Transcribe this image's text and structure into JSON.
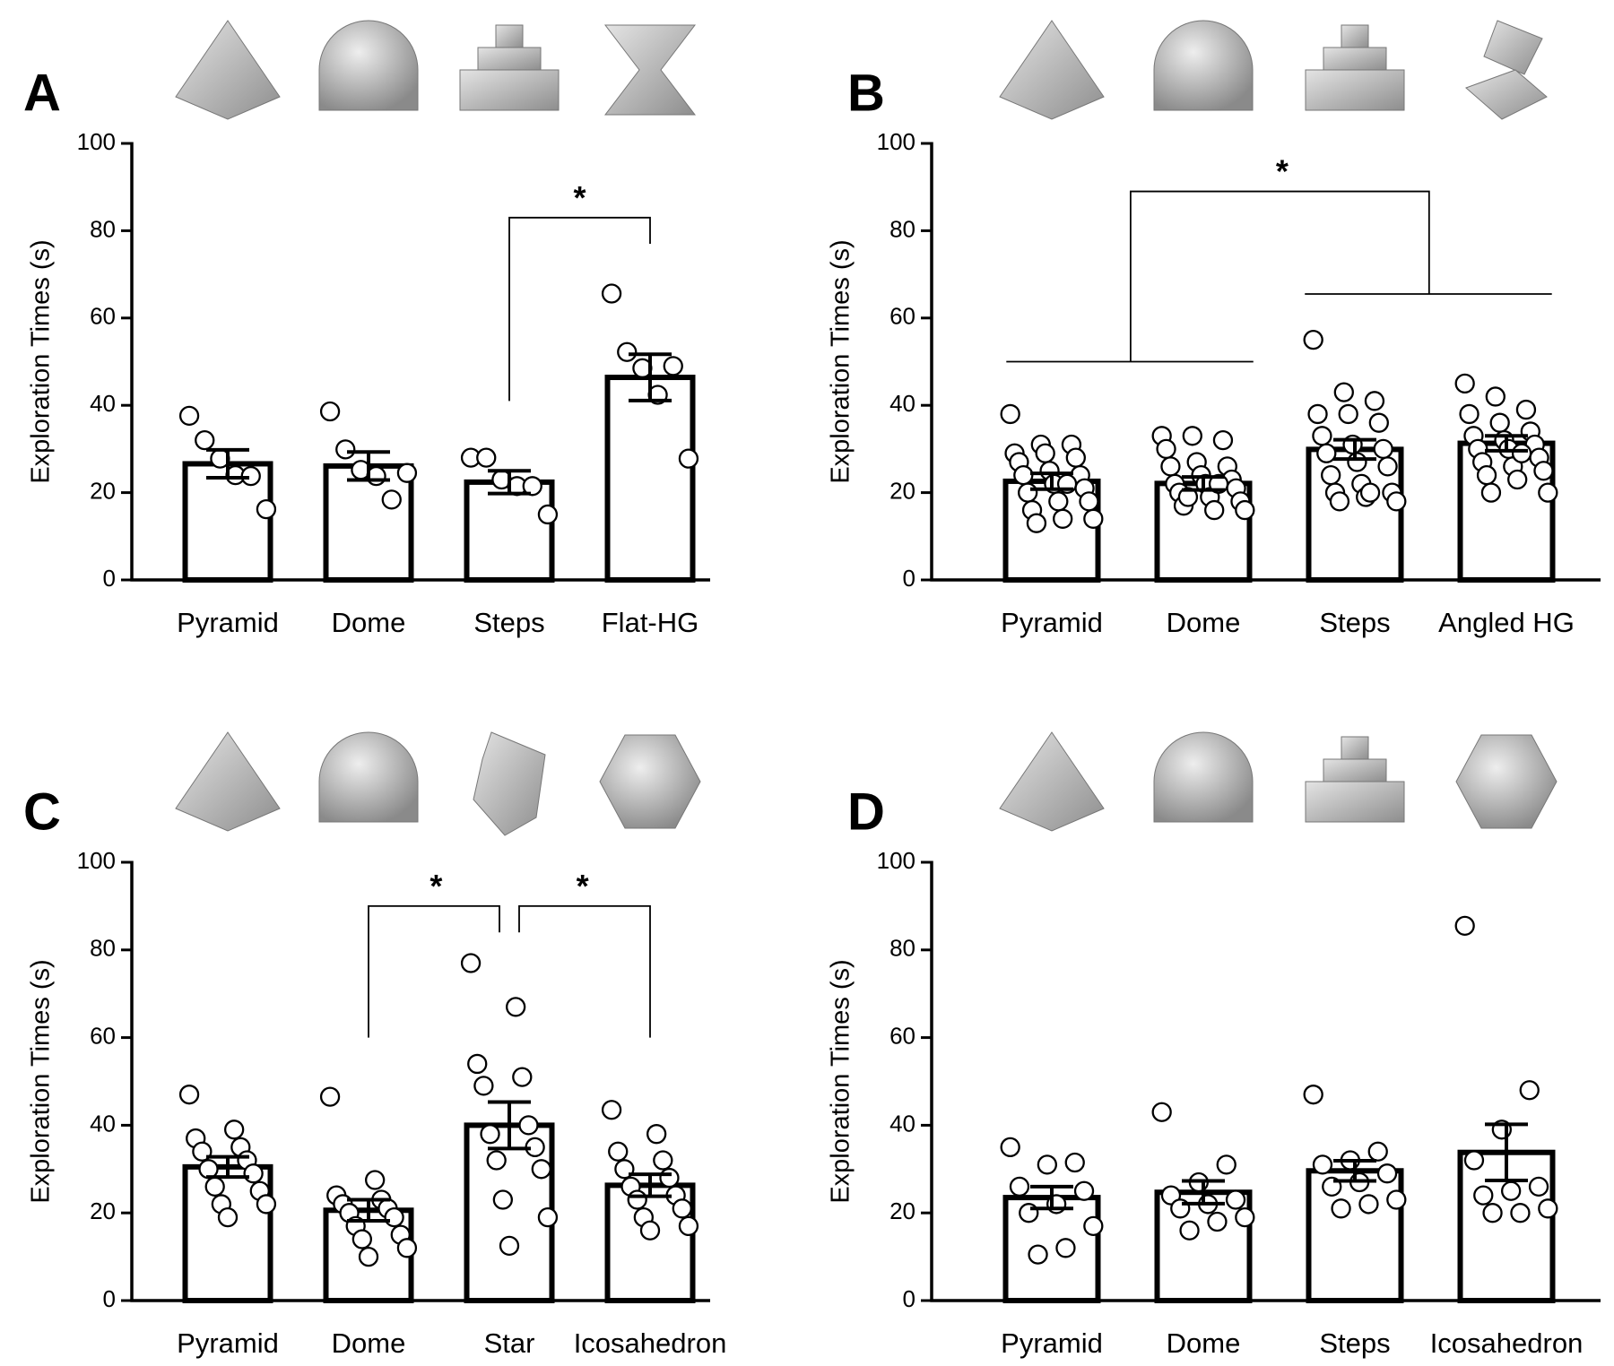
{
  "chart_data": [
    {
      "type": "bar",
      "panel_label": "A",
      "y_label": "Exploration Times (s)",
      "categories": [
        "Pyramid",
        "Dome",
        "Steps",
        "Flat-HG"
      ],
      "values": [
        26.6,
        26.1,
        22.4,
        46.4
      ],
      "errors": [
        3.2,
        3.2,
        2.6,
        5.3
      ],
      "points": [
        [
          37.6,
          32,
          27.8,
          24,
          23.8,
          16.2
        ],
        [
          38.6,
          29.9,
          25.2,
          23.8,
          18.4,
          24.5
        ],
        [
          28,
          28,
          23,
          21.5,
          21.5,
          15
        ],
        [
          65.6,
          52.2,
          48.5,
          42.4,
          49,
          27.8
        ]
      ],
      "annotations": [
        "*"
      ],
      "color": "#000000",
      "ylim": [
        0,
        100
      ],
      "yticks": [
        0,
        20,
        40,
        60,
        80,
        100
      ]
    },
    {
      "type": "bar",
      "panel_label": "B",
      "y_label": "Exploration Times (s)",
      "categories": [
        "Pyramid",
        "Dome",
        "Steps",
        "Angled HG"
      ],
      "values": [
        22.6,
        22.1,
        29.9,
        31.3
      ],
      "errors": [
        1.8,
        1.5,
        2.2,
        1.7
      ],
      "points": [
        [
          38,
          31,
          31,
          29,
          29,
          28,
          27,
          25,
          24,
          24,
          22,
          21,
          20,
          18,
          18,
          16,
          14,
          14,
          13,
          22
        ],
        [
          33,
          33,
          32,
          30,
          27,
          26,
          26,
          24,
          23,
          22,
          22,
          21,
          20,
          19,
          18,
          17,
          16,
          16,
          19,
          22
        ],
        [
          55,
          43,
          41,
          38,
          38,
          36,
          33,
          31,
          30,
          29,
          27,
          26,
          24,
          22,
          20,
          20,
          19,
          18,
          18,
          20
        ],
        [
          45,
          42,
          39,
          38,
          36,
          34,
          33,
          32,
          31,
          30,
          30,
          28,
          27,
          26,
          25,
          24,
          23,
          20,
          20,
          29
        ]
      ],
      "annotations": [
        "*"
      ],
      "color": "#000000",
      "ylim": [
        0,
        100
      ],
      "yticks": [
        0,
        20,
        40,
        60,
        80,
        100
      ]
    },
    {
      "type": "bar",
      "panel_label": "C",
      "y_label": "Exploration Times (s)",
      "categories": [
        "Pyramid",
        "Dome",
        "Star",
        "Icosahedron"
      ],
      "values": [
        30.5,
        20.6,
        40,
        26.3
      ],
      "errors": [
        2.3,
        2.4,
        5.3,
        2.5
      ],
      "points": [
        [
          47,
          39,
          37,
          35,
          34,
          32,
          30,
          29,
          26,
          25,
          22,
          22,
          19
        ],
        [
          46.5,
          27.5,
          24,
          23,
          22,
          21,
          20,
          19,
          17,
          15,
          14,
          12,
          10
        ],
        [
          77,
          67,
          54,
          51,
          49,
          40,
          38,
          35,
          32,
          30,
          23,
          19,
          12.5
        ],
        [
          43.5,
          38,
          34,
          32,
          30,
          28,
          26,
          24,
          23,
          21,
          19,
          17,
          16
        ]
      ],
      "annotations": [
        "*",
        "*"
      ],
      "color": "#000000",
      "ylim": [
        0,
        100
      ],
      "yticks": [
        0,
        20,
        40,
        60,
        80,
        100
      ]
    },
    {
      "type": "bar",
      "panel_label": "D",
      "y_label": "Exploration Times (s)",
      "categories": [
        "Pyramid",
        "Dome",
        "Steps",
        "Icosahedron"
      ],
      "values": [
        23.5,
        24.7,
        29.6,
        33.8
      ],
      "errors": [
        2.5,
        2.6,
        2.3,
        6.4
      ],
      "points": [
        [
          35,
          31.5,
          31,
          26,
          25,
          22,
          20,
          17,
          12,
          10.5
        ],
        [
          43,
          31,
          27,
          24,
          23,
          22,
          21,
          19,
          18,
          16
        ],
        [
          47,
          34,
          32,
          31,
          29,
          27,
          26,
          23,
          22,
          21
        ],
        [
          85.5,
          48,
          39,
          32,
          26,
          25,
          24,
          21,
          20,
          20
        ]
      ],
      "annotations": [],
      "color": "#000000",
      "ylim": [
        0,
        100
      ],
      "yticks": [
        0,
        20,
        40,
        60,
        80,
        100
      ]
    }
  ]
}
